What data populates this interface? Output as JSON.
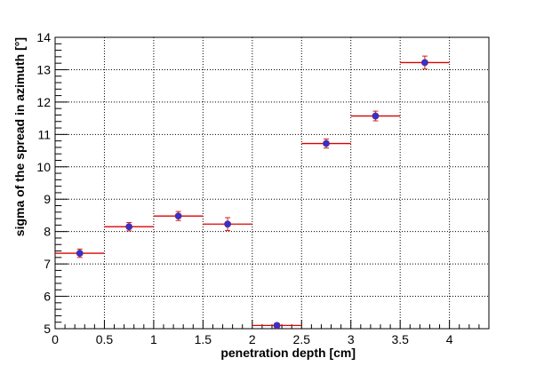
{
  "chart_data": {
    "type": "scatter",
    "title": "",
    "xlabel": "penetration depth [cm]",
    "ylabel": "sigma of the spread in azimuth [°]",
    "xlim": [
      0,
      4.4
    ],
    "ylim": [
      5,
      14
    ],
    "xticks": [
      0,
      0.5,
      1,
      1.5,
      2,
      2.5,
      3,
      3.5,
      4
    ],
    "xtick_labels": [
      "0",
      "0.5",
      "1",
      "1.5",
      "2",
      "2.5",
      "3",
      "3.5",
      "4"
    ],
    "yticks": [
      5,
      6,
      7,
      8,
      9,
      10,
      11,
      12,
      13,
      14
    ],
    "ytick_labels": [
      "5",
      "6",
      "7",
      "8",
      "9",
      "10",
      "11",
      "12",
      "13",
      "14"
    ],
    "grid": true,
    "legend": "none",
    "colors": {
      "marker": "#3333cc",
      "xerror": "#dd0000",
      "yerror": "#cc2222",
      "grid": "#000000"
    },
    "points": [
      {
        "x": 0.25,
        "y": 7.33,
        "xerr": 0.25,
        "yerr": 0.13
      },
      {
        "x": 0.75,
        "y": 8.15,
        "xerr": 0.25,
        "yerr": 0.13
      },
      {
        "x": 1.25,
        "y": 8.48,
        "xerr": 0.25,
        "yerr": 0.14
      },
      {
        "x": 1.75,
        "y": 8.23,
        "xerr": 0.25,
        "yerr": 0.2
      },
      {
        "x": 2.25,
        "y": 5.1,
        "xerr": 0.25,
        "yerr": 0.07
      },
      {
        "x": 2.75,
        "y": 10.72,
        "xerr": 0.25,
        "yerr": 0.14
      },
      {
        "x": 3.25,
        "y": 11.57,
        "xerr": 0.25,
        "yerr": 0.15
      },
      {
        "x": 3.75,
        "y": 13.22,
        "xerr": 0.25,
        "yerr": 0.2
      }
    ]
  }
}
